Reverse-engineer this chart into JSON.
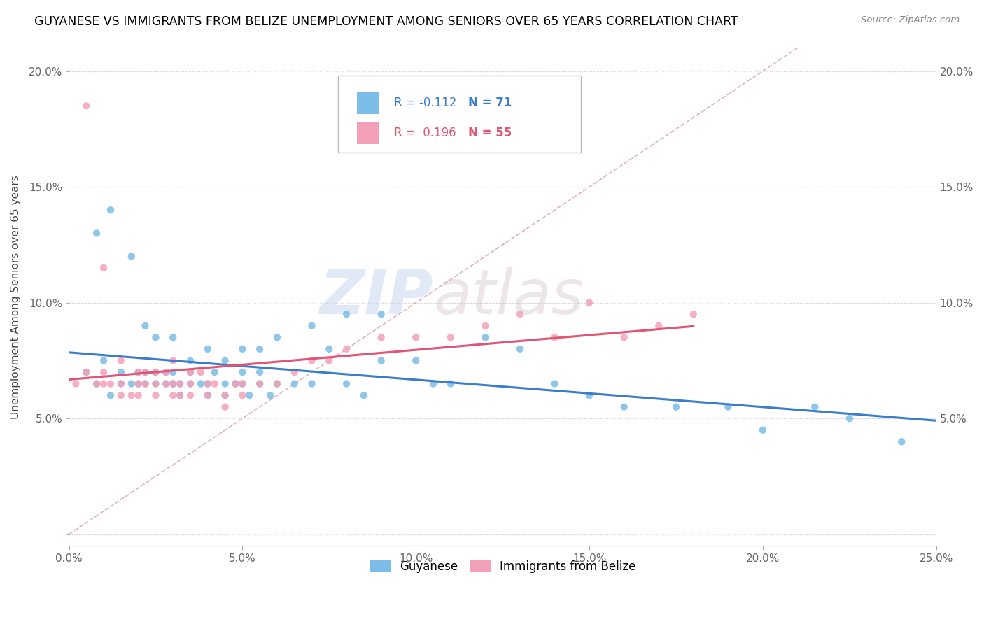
{
  "title": "GUYANESE VS IMMIGRANTS FROM BELIZE UNEMPLOYMENT AMONG SENIORS OVER 65 YEARS CORRELATION CHART",
  "source": "Source: ZipAtlas.com",
  "ylabel": "Unemployment Among Seniors over 65 years",
  "legend_r0": "R = -0.112",
  "legend_n0": "N = 71",
  "legend_r1": "R =  0.196",
  "legend_n1": "N = 55",
  "color_blue": "#7bbde8",
  "color_pink": "#f4a0b8",
  "color_blue_line": "#3a7dc9",
  "color_pink_line": "#e05575",
  "color_diag": "#d8aab0",
  "xlim": [
    0.0,
    0.25
  ],
  "ylim": [
    -0.005,
    0.21
  ],
  "xticks": [
    0.0,
    0.05,
    0.1,
    0.15,
    0.2,
    0.25
  ],
  "yticks": [
    0.0,
    0.05,
    0.1,
    0.15,
    0.2
  ],
  "xtick_labels": [
    "0.0%",
    "5.0%",
    "10.0%",
    "15.0%",
    "20.0%",
    "25.0%"
  ],
  "ytick_labels_left": [
    "",
    "5.0%",
    "10.0%",
    "15.0%",
    "20.0%"
  ],
  "ytick_labels_right": [
    "",
    "5.0%",
    "10.0%",
    "15.0%",
    "20.0%"
  ],
  "watermark_zip": "ZIP",
  "watermark_atlas": "atlas",
  "blue_x": [
    0.005,
    0.008,
    0.01,
    0.012,
    0.015,
    0.015,
    0.018,
    0.02,
    0.02,
    0.022,
    0.022,
    0.025,
    0.025,
    0.028,
    0.028,
    0.03,
    0.03,
    0.03,
    0.032,
    0.032,
    0.035,
    0.035,
    0.038,
    0.04,
    0.04,
    0.042,
    0.045,
    0.045,
    0.048,
    0.05,
    0.05,
    0.052,
    0.055,
    0.055,
    0.058,
    0.06,
    0.065,
    0.07,
    0.075,
    0.08,
    0.085,
    0.09,
    0.1,
    0.105,
    0.11,
    0.12,
    0.13,
    0.14,
    0.15,
    0.16,
    0.175,
    0.19,
    0.2,
    0.215,
    0.225,
    0.24,
    0.008,
    0.012,
    0.018,
    0.022,
    0.025,
    0.03,
    0.035,
    0.04,
    0.045,
    0.05,
    0.055,
    0.06,
    0.07,
    0.08,
    0.09
  ],
  "blue_y": [
    0.07,
    0.065,
    0.075,
    0.06,
    0.07,
    0.065,
    0.065,
    0.07,
    0.065,
    0.07,
    0.065,
    0.065,
    0.07,
    0.065,
    0.07,
    0.065,
    0.07,
    0.065,
    0.06,
    0.065,
    0.065,
    0.07,
    0.065,
    0.065,
    0.06,
    0.07,
    0.065,
    0.06,
    0.065,
    0.07,
    0.065,
    0.06,
    0.07,
    0.065,
    0.06,
    0.065,
    0.065,
    0.065,
    0.08,
    0.065,
    0.06,
    0.075,
    0.075,
    0.065,
    0.065,
    0.085,
    0.08,
    0.065,
    0.06,
    0.055,
    0.055,
    0.055,
    0.045,
    0.055,
    0.05,
    0.04,
    0.13,
    0.14,
    0.12,
    0.09,
    0.085,
    0.085,
    0.075,
    0.08,
    0.075,
    0.08,
    0.08,
    0.085,
    0.09,
    0.095,
    0.095
  ],
  "pink_x": [
    0.002,
    0.005,
    0.008,
    0.01,
    0.01,
    0.012,
    0.015,
    0.015,
    0.018,
    0.02,
    0.02,
    0.022,
    0.022,
    0.025,
    0.025,
    0.028,
    0.028,
    0.03,
    0.03,
    0.032,
    0.032,
    0.035,
    0.035,
    0.038,
    0.04,
    0.04,
    0.042,
    0.045,
    0.045,
    0.048,
    0.05,
    0.05,
    0.055,
    0.06,
    0.065,
    0.07,
    0.075,
    0.08,
    0.09,
    0.1,
    0.11,
    0.12,
    0.13,
    0.14,
    0.15,
    0.16,
    0.17,
    0.18,
    0.005,
    0.01,
    0.015,
    0.02,
    0.025,
    0.03,
    0.035
  ],
  "pink_y": [
    0.065,
    0.07,
    0.065,
    0.065,
    0.07,
    0.065,
    0.065,
    0.06,
    0.06,
    0.065,
    0.06,
    0.065,
    0.07,
    0.065,
    0.06,
    0.065,
    0.07,
    0.065,
    0.06,
    0.065,
    0.06,
    0.065,
    0.06,
    0.07,
    0.065,
    0.06,
    0.065,
    0.06,
    0.055,
    0.065,
    0.065,
    0.06,
    0.065,
    0.065,
    0.07,
    0.075,
    0.075,
    0.08,
    0.085,
    0.085,
    0.085,
    0.09,
    0.095,
    0.085,
    0.1,
    0.085,
    0.09,
    0.095,
    0.185,
    0.115,
    0.075,
    0.07,
    0.07,
    0.075,
    0.07
  ]
}
